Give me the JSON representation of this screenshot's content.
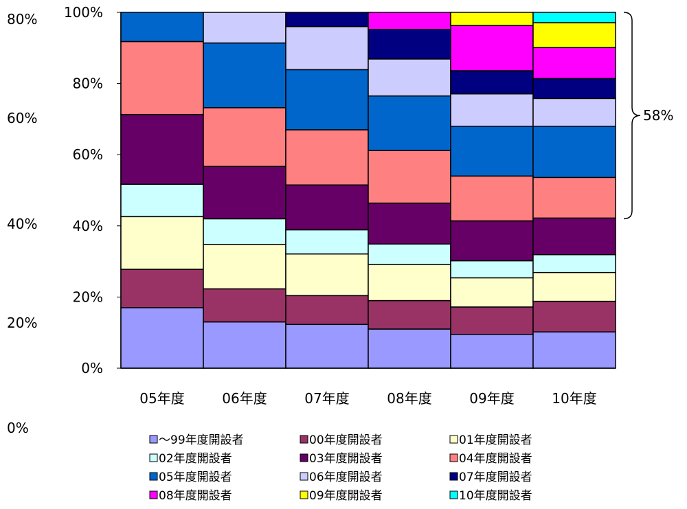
{
  "chart_data": {
    "type": "bar",
    "stacked": true,
    "normalized": true,
    "categories": [
      "05年度",
      "06年度",
      "07年度",
      "08年度",
      "09年度",
      "10年度"
    ],
    "ylim": [
      0,
      100
    ],
    "y_ticks": [
      "0%",
      "20%",
      "40%",
      "60%",
      "80%",
      "100%"
    ],
    "outer_y_labels": [
      "0%",
      "20%",
      "40%",
      "60%",
      "80%"
    ],
    "series": [
      {
        "name": "～99年度開設者",
        "color": "#9999FF",
        "values": [
          17.0,
          13.0,
          12.3,
          11.0,
          9.5,
          10.2
        ]
      },
      {
        "name": "00年度開設者",
        "color": "#993366",
        "values": [
          10.8,
          9.3,
          8.1,
          8.0,
          7.7,
          8.6
        ]
      },
      {
        "name": "01年度開設者",
        "color": "#FFFFCC",
        "values": [
          14.8,
          12.5,
          11.7,
          10.1,
          8.2,
          8.1
        ]
      },
      {
        "name": "02年度開設者",
        "color": "#CCFFFF",
        "values": [
          9.1,
          7.2,
          6.8,
          5.8,
          4.8,
          5.0
        ]
      },
      {
        "name": "03年度開設者",
        "color": "#660066",
        "values": [
          19.6,
          14.7,
          12.6,
          11.5,
          11.2,
          10.3
        ]
      },
      {
        "name": "04年度開設者",
        "color": "#FF8080",
        "values": [
          20.5,
          16.5,
          15.5,
          14.8,
          12.6,
          11.4
        ]
      },
      {
        "name": "05年度開設者",
        "color": "#0066CC",
        "values": [
          8.2,
          18.2,
          16.9,
          15.3,
          14.0,
          14.4
        ]
      },
      {
        "name": "06年度開設者",
        "color": "#CCCCFF",
        "values": [
          0,
          8.6,
          12.1,
          10.4,
          9.1,
          7.8
        ]
      },
      {
        "name": "07年度開設者",
        "color": "#000080",
        "values": [
          0,
          0,
          4.0,
          8.3,
          6.5,
          5.6
        ]
      },
      {
        "name": "08年度開設者",
        "color": "#FF00FF",
        "values": [
          0,
          0,
          0,
          4.8,
          12.7,
          8.7
        ]
      },
      {
        "name": "09年度開設者",
        "color": "#FFFF00",
        "values": [
          0,
          0,
          0,
          0,
          3.7,
          7.0
        ]
      },
      {
        "name": "10年度開設者",
        "color": "#00FFFF",
        "values": [
          0,
          0,
          0,
          0,
          0,
          2.9
        ]
      }
    ],
    "annotation": {
      "label": "58%",
      "from": 42.0,
      "to": 100
    }
  }
}
